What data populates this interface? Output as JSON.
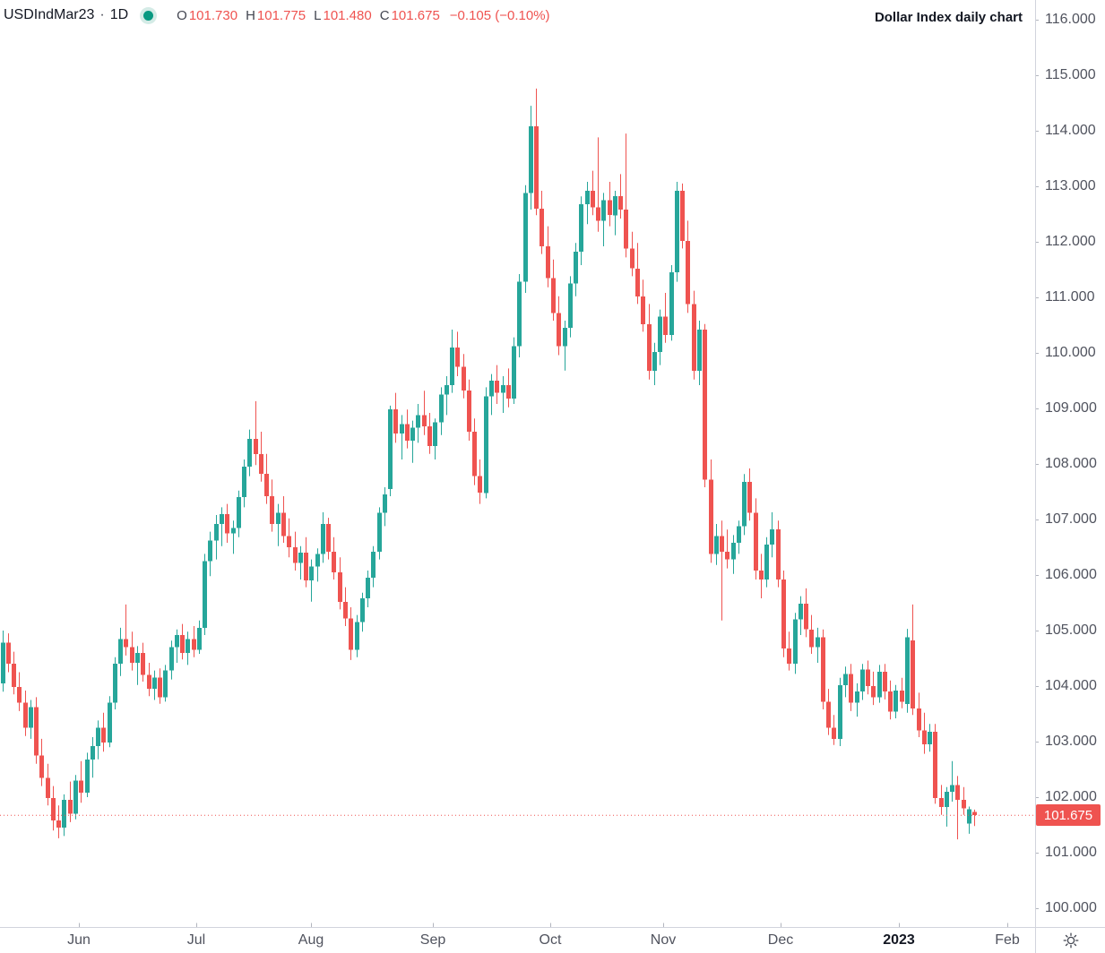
{
  "legend": {
    "symbol": "USDIndMar23",
    "separator": "·",
    "interval": "1D",
    "ohlc": [
      {
        "label": "O",
        "value": "101.730"
      },
      {
        "label": "H",
        "value": "101.775"
      },
      {
        "label": "L",
        "value": "101.480"
      },
      {
        "label": "C",
        "value": "101.675"
      }
    ],
    "change": "−0.105 (−0.10%)"
  },
  "title": "Dollar Index daily chart",
  "price_scale": {
    "last_price_label": "101.675"
  },
  "icons": {
    "status_dot": "market-status-dot",
    "settings": "gear-icon"
  },
  "chart_data": {
    "type": "candlestick",
    "symbol": "USDIndMar23",
    "interval": "1D",
    "title": "Dollar Index daily chart",
    "grid": false,
    "last_close": 101.675,
    "y_axis": {
      "side": "right",
      "min": 100,
      "max": 116,
      "step": 1,
      "decimals": 3,
      "labels": [
        116,
        115,
        114,
        113,
        112,
        111,
        110,
        109,
        108,
        107,
        106,
        105,
        104,
        103,
        102,
        101,
        100
      ]
    },
    "x_axis": {
      "ticks": [
        {
          "label": "Jun",
          "i": 13.6
        },
        {
          "label": "Jul",
          "i": 34.5
        },
        {
          "label": "Aug",
          "i": 54.9
        },
        {
          "label": "Sep",
          "i": 76.6
        },
        {
          "label": "Oct",
          "i": 97.4
        },
        {
          "label": "Nov",
          "i": 117.6
        },
        {
          "label": "Dec",
          "i": 138.4
        },
        {
          "label": "2023",
          "i": 159.5,
          "bold": true
        },
        {
          "label": "Feb",
          "i": 178.8
        }
      ]
    },
    "colors": {
      "up": "#26a69a",
      "down": "#ef5350",
      "last_price_line": "#ef5350",
      "badge_bg": "#ef5350",
      "badge_text": "#ffffff"
    },
    "bars": [
      [
        104.05,
        105.0,
        103.9,
        104.78
      ],
      [
        104.78,
        104.95,
        104.25,
        104.4
      ],
      [
        104.4,
        104.62,
        103.85,
        103.98
      ],
      [
        103.98,
        104.25,
        103.55,
        103.7
      ],
      [
        103.7,
        103.92,
        103.1,
        103.25
      ],
      [
        103.25,
        103.75,
        103.05,
        103.62
      ],
      [
        103.62,
        103.8,
        102.6,
        102.75
      ],
      [
        102.75,
        103.05,
        102.2,
        102.35
      ],
      [
        102.35,
        102.6,
        101.85,
        101.98
      ],
      [
        101.98,
        102.2,
        101.4,
        101.58
      ],
      [
        101.58,
        101.85,
        101.26,
        101.45
      ],
      [
        101.45,
        102.05,
        101.3,
        101.95
      ],
      [
        101.95,
        102.28,
        101.55,
        101.7
      ],
      [
        101.7,
        102.4,
        101.6,
        102.3
      ],
      [
        102.3,
        102.65,
        101.9,
        102.08
      ],
      [
        102.08,
        102.8,
        102.0,
        102.68
      ],
      [
        102.68,
        103.08,
        102.35,
        102.92
      ],
      [
        102.92,
        103.38,
        102.68,
        103.25
      ],
      [
        103.25,
        103.52,
        102.82,
        102.98
      ],
      [
        102.98,
        103.82,
        102.9,
        103.7
      ],
      [
        103.7,
        104.52,
        103.58,
        104.4
      ],
      [
        104.4,
        105.05,
        104.18,
        104.85
      ],
      [
        104.85,
        105.47,
        104.55,
        104.7
      ],
      [
        104.7,
        104.98,
        104.28,
        104.42
      ],
      [
        104.42,
        104.72,
        104.02,
        104.6
      ],
      [
        104.6,
        104.78,
        104.08,
        104.2
      ],
      [
        104.2,
        104.42,
        103.82,
        103.95
      ],
      [
        103.95,
        104.28,
        103.75,
        104.15
      ],
      [
        104.15,
        104.32,
        103.68,
        103.8
      ],
      [
        103.8,
        104.38,
        103.72,
        104.28
      ],
      [
        104.28,
        104.82,
        104.12,
        104.7
      ],
      [
        104.7,
        105.02,
        104.42,
        104.92
      ],
      [
        104.92,
        105.12,
        104.48,
        104.6
      ],
      [
        104.6,
        104.98,
        104.38,
        104.85
      ],
      [
        104.85,
        105.08,
        104.52,
        104.65
      ],
      [
        104.65,
        105.18,
        104.58,
        105.05
      ],
      [
        105.05,
        106.38,
        104.92,
        106.25
      ],
      [
        106.25,
        106.78,
        105.98,
        106.62
      ],
      [
        106.62,
        107.08,
        106.28,
        106.92
      ],
      [
        106.92,
        107.22,
        106.52,
        107.1
      ],
      [
        107.1,
        107.28,
        106.58,
        106.75
      ],
      [
        106.75,
        106.98,
        106.38,
        106.85
      ],
      [
        106.85,
        107.52,
        106.68,
        107.4
      ],
      [
        107.4,
        108.08,
        107.22,
        107.95
      ],
      [
        107.95,
        108.62,
        107.78,
        108.45
      ],
      [
        108.45,
        109.13,
        107.98,
        108.18
      ],
      [
        108.18,
        108.58,
        107.68,
        107.82
      ],
      [
        107.82,
        108.18,
        107.28,
        107.42
      ],
      [
        107.42,
        107.72,
        106.78,
        106.92
      ],
      [
        106.92,
        107.28,
        106.52,
        107.12
      ],
      [
        107.12,
        107.42,
        106.58,
        106.7
      ],
      [
        106.7,
        107.02,
        106.32,
        106.5
      ],
      [
        106.5,
        106.78,
        106.08,
        106.22
      ],
      [
        106.22,
        106.52,
        105.92,
        106.4
      ],
      [
        106.4,
        106.68,
        105.78,
        105.9
      ],
      [
        105.9,
        106.28,
        105.52,
        106.15
      ],
      [
        106.15,
        106.48,
        105.88,
        106.38
      ],
      [
        106.38,
        107.13,
        106.22,
        106.92
      ],
      [
        106.92,
        107.03,
        106.28,
        106.42
      ],
      [
        106.42,
        106.68,
        105.92,
        106.05
      ],
      [
        106.05,
        106.32,
        105.38,
        105.52
      ],
      [
        105.52,
        105.78,
        105.08,
        105.22
      ],
      [
        105.22,
        105.42,
        104.47,
        104.65
      ],
      [
        104.65,
        105.28,
        104.52,
        105.15
      ],
      [
        105.15,
        105.68,
        104.98,
        105.58
      ],
      [
        105.58,
        106.08,
        105.42,
        105.95
      ],
      [
        105.95,
        106.52,
        105.78,
        106.42
      ],
      [
        106.42,
        107.22,
        106.28,
        107.12
      ],
      [
        107.12,
        107.58,
        106.88,
        107.45
      ],
      [
        107.55,
        109.05,
        107.42,
        108.98
      ],
      [
        108.98,
        109.28,
        108.38,
        108.55
      ],
      [
        108.55,
        108.88,
        108.08,
        108.72
      ],
      [
        108.72,
        108.98,
        108.28,
        108.42
      ],
      [
        108.42,
        108.78,
        108.02,
        108.65
      ],
      [
        108.65,
        109.08,
        108.38,
        108.88
      ],
      [
        108.88,
        109.32,
        108.52,
        108.68
      ],
      [
        108.68,
        108.92,
        108.18,
        108.32
      ],
      [
        108.32,
        108.82,
        108.08,
        108.75
      ],
      [
        108.75,
        109.38,
        108.52,
        109.25
      ],
      [
        109.25,
        109.58,
        108.88,
        109.42
      ],
      [
        109.42,
        110.42,
        109.28,
        110.1
      ],
      [
        110.1,
        110.38,
        109.58,
        109.75
      ],
      [
        109.75,
        109.98,
        109.18,
        109.32
      ],
      [
        109.32,
        109.52,
        108.42,
        108.58
      ],
      [
        108.58,
        108.82,
        107.62,
        107.78
      ],
      [
        107.78,
        108.08,
        107.28,
        107.48
      ],
      [
        107.48,
        109.38,
        107.38,
        109.22
      ],
      [
        109.22,
        109.62,
        108.88,
        109.5
      ],
      [
        109.5,
        109.78,
        109.08,
        109.28
      ],
      [
        109.28,
        109.58,
        108.92,
        109.42
      ],
      [
        109.42,
        109.72,
        109.02,
        109.18
      ],
      [
        109.18,
        110.28,
        109.08,
        110.12
      ],
      [
        110.12,
        111.42,
        109.92,
        111.28
      ],
      [
        111.28,
        113.02,
        111.08,
        112.88
      ],
      [
        112.88,
        114.45,
        112.58,
        114.08
      ],
      [
        114.08,
        114.76,
        112.48,
        112.6
      ],
      [
        112.6,
        112.92,
        111.78,
        111.92
      ],
      [
        111.92,
        112.28,
        111.18,
        111.35
      ],
      [
        111.35,
        111.68,
        110.58,
        110.72
      ],
      [
        110.72,
        111.02,
        109.96,
        110.12
      ],
      [
        110.12,
        110.58,
        109.68,
        110.45
      ],
      [
        110.45,
        111.38,
        110.28,
        111.25
      ],
      [
        111.25,
        111.98,
        111.02,
        111.82
      ],
      [
        111.82,
        112.82,
        111.58,
        112.68
      ],
      [
        112.68,
        113.08,
        112.32,
        112.92
      ],
      [
        112.92,
        113.28,
        112.48,
        112.62
      ],
      [
        112.62,
        113.88,
        112.18,
        112.38
      ],
      [
        112.38,
        112.88,
        111.92,
        112.75
      ],
      [
        112.75,
        113.08,
        112.28,
        112.48
      ],
      [
        112.48,
        112.92,
        112.12,
        112.82
      ],
      [
        112.82,
        113.22,
        112.42,
        112.58
      ],
      [
        112.58,
        113.95,
        111.72,
        111.88
      ],
      [
        111.88,
        112.18,
        111.38,
        111.52
      ],
      [
        111.52,
        111.98,
        110.88,
        111.02
      ],
      [
        111.02,
        111.32,
        110.38,
        110.52
      ],
      [
        110.52,
        110.88,
        109.52,
        109.68
      ],
      [
        109.68,
        110.18,
        109.42,
        110.02
      ],
      [
        110.02,
        110.78,
        109.78,
        110.65
      ],
      [
        110.65,
        111.08,
        110.18,
        110.32
      ],
      [
        110.32,
        111.58,
        110.22,
        111.45
      ],
      [
        111.45,
        113.08,
        111.28,
        112.92
      ],
      [
        112.92,
        113.05,
        111.88,
        112.02
      ],
      [
        112.02,
        112.38,
        110.72,
        110.88
      ],
      [
        110.88,
        111.12,
        109.52,
        109.68
      ],
      [
        109.68,
        110.58,
        109.42,
        110.42
      ],
      [
        110.42,
        110.52,
        107.58,
        107.72
      ],
      [
        107.72,
        108.08,
        106.22,
        106.38
      ],
      [
        106.38,
        106.92,
        106.18,
        106.7
      ],
      [
        106.7,
        106.98,
        105.18,
        106.42
      ],
      [
        106.42,
        106.82,
        106.12,
        106.28
      ],
      [
        106.28,
        106.72,
        106.02,
        106.58
      ],
      [
        106.58,
        106.98,
        106.38,
        106.88
      ],
      [
        106.88,
        107.82,
        106.72,
        107.68
      ],
      [
        107.68,
        107.92,
        106.98,
        107.12
      ],
      [
        107.12,
        107.38,
        105.92,
        106.08
      ],
      [
        106.08,
        106.38,
        105.58,
        105.92
      ],
      [
        105.92,
        106.68,
        105.78,
        106.55
      ],
      [
        106.55,
        107.13,
        106.32,
        106.82
      ],
      [
        106.82,
        106.98,
        105.78,
        105.92
      ],
      [
        105.92,
        106.08,
        104.52,
        104.68
      ],
      [
        104.68,
        104.98,
        104.28,
        104.4
      ],
      [
        104.4,
        105.32,
        104.22,
        105.2
      ],
      [
        105.2,
        105.62,
        104.92,
        105.48
      ],
      [
        105.48,
        105.76,
        104.88,
        105.02
      ],
      [
        105.02,
        105.28,
        104.58,
        104.7
      ],
      [
        104.7,
        105.05,
        104.42,
        104.88
      ],
      [
        104.88,
        105.02,
        103.58,
        103.72
      ],
      [
        103.72,
        103.95,
        103.12,
        103.25
      ],
      [
        103.25,
        103.48,
        102.94,
        103.05
      ],
      [
        103.05,
        104.15,
        102.92,
        104.02
      ],
      [
        104.02,
        104.35,
        103.8,
        104.22
      ],
      [
        104.22,
        104.4,
        103.55,
        103.7
      ],
      [
        103.7,
        104.05,
        103.45,
        103.9
      ],
      [
        103.9,
        104.4,
        103.75,
        104.3
      ],
      [
        104.3,
        104.46,
        103.85,
        104.0
      ],
      [
        104.0,
        104.26,
        103.66,
        103.8
      ],
      [
        103.8,
        104.38,
        103.7,
        104.26
      ],
      [
        104.26,
        104.4,
        103.76,
        103.9
      ],
      [
        103.9,
        104.1,
        103.4,
        103.54
      ],
      [
        103.54,
        104.02,
        103.42,
        103.92
      ],
      [
        103.92,
        104.15,
        103.6,
        103.72
      ],
      [
        103.68,
        105.03,
        103.52,
        104.88
      ],
      [
        104.82,
        105.47,
        103.48,
        103.6
      ],
      [
        103.6,
        103.88,
        103.08,
        103.2
      ],
      [
        103.2,
        103.52,
        102.78,
        102.95
      ],
      [
        102.95,
        103.32,
        102.82,
        103.18
      ],
      [
        103.18,
        103.32,
        101.88,
        101.98
      ],
      [
        101.98,
        102.22,
        101.68,
        101.82
      ],
      [
        101.82,
        102.18,
        101.47,
        102.1
      ],
      [
        102.1,
        102.65,
        101.92,
        102.22
      ],
      [
        102.22,
        102.38,
        101.24,
        101.95
      ],
      [
        101.95,
        102.18,
        101.68,
        101.8
      ],
      [
        101.52,
        101.83,
        101.34,
        101.78
      ],
      [
        101.73,
        101.775,
        101.48,
        101.675
      ]
    ]
  }
}
